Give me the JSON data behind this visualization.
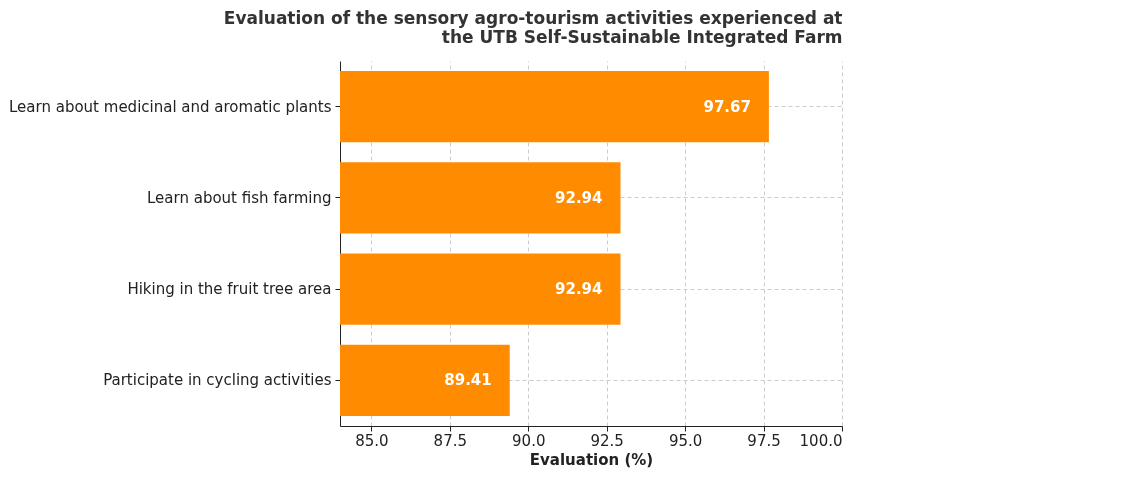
{
  "chart_data": {
    "type": "bar",
    "orientation": "horizontal",
    "title": "Evaluation of the sensory agro-tourism activities experienced at\nthe UTB Self-Sustainable Integrated Farm",
    "xlabel": "Evaluation (%)",
    "categories": [
      "Learn about medicinal and aromatic plants",
      "Learn about fish farming",
      "Hiking in the fruit tree area",
      "Participate in cycling activities"
    ],
    "values": [
      97.67,
      92.94,
      92.94,
      89.41
    ],
    "color": "#ff8c00",
    "xlim": [
      84,
      100
    ],
    "xticks": [
      {
        "value": 85,
        "label": "85.0"
      },
      {
        "value": 87.5,
        "label": "87.5"
      },
      {
        "value": 90,
        "label": "90.0"
      },
      {
        "value": 92.5,
        "label": "92.5"
      },
      {
        "value": 95,
        "label": "95.0"
      },
      {
        "value": 97.5,
        "label": "97.5"
      },
      {
        "value": 100,
        "label": "100.0"
      }
    ],
    "grid": true,
    "data_labels": true
  }
}
